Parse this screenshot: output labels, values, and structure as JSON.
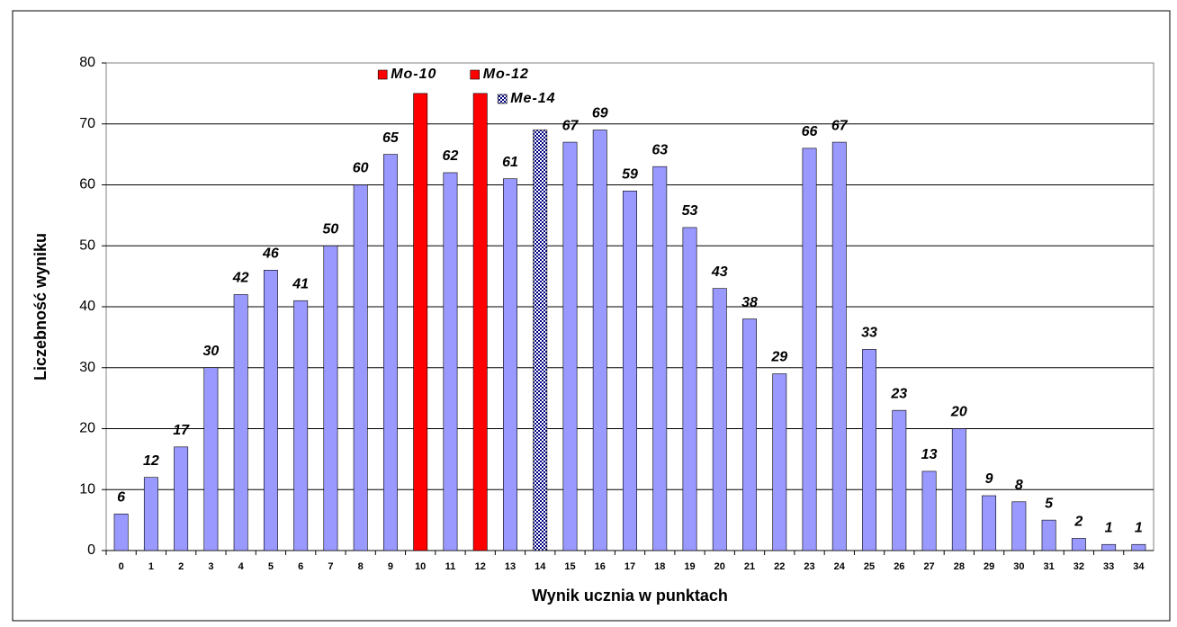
{
  "chart_data": {
    "type": "bar",
    "x_label": "Wynik ucznia w punktach",
    "y_label": "Liczebność wyniku",
    "categories": [
      "0",
      "1",
      "2",
      "3",
      "4",
      "5",
      "6",
      "7",
      "8",
      "9",
      "10",
      "11",
      "12",
      "13",
      "14",
      "15",
      "16",
      "17",
      "18",
      "19",
      "20",
      "21",
      "22",
      "23",
      "24",
      "25",
      "26",
      "27",
      "28",
      "29",
      "30",
      "31",
      "32",
      "33",
      "34"
    ],
    "values": [
      6,
      12,
      17,
      30,
      42,
      46,
      41,
      50,
      60,
      65,
      75,
      62,
      75,
      61,
      69,
      67,
      69,
      59,
      63,
      53,
      43,
      38,
      29,
      66,
      67,
      33,
      23,
      13,
      20,
      9,
      8,
      5,
      2,
      1,
      1
    ],
    "value_labels": [
      "6",
      "12",
      "17",
      "30",
      "42",
      "46",
      "41",
      "50",
      "60",
      "65",
      null,
      "62",
      null,
      "61",
      null,
      "67",
      "69",
      "59",
      "63",
      "53",
      "43",
      "38",
      "29",
      "66",
      "67",
      "33",
      "23",
      "13",
      "20",
      "9",
      "8",
      "5",
      "2",
      "1",
      "1"
    ],
    "color": "#9999ff",
    "annotations": [
      {
        "text": "Mo-10",
        "category": "10",
        "color": "#ff0000"
      },
      {
        "text": "Mo-12",
        "category": "12",
        "color": "#ff0000"
      },
      {
        "text": "Me-14",
        "category": "14",
        "color": "#000080",
        "pattern": "checker"
      }
    ],
    "ylim": [
      0,
      80
    ],
    "yticks": [
      0,
      10,
      20,
      30,
      40,
      50,
      60,
      70,
      80
    ],
    "grid": true
  }
}
